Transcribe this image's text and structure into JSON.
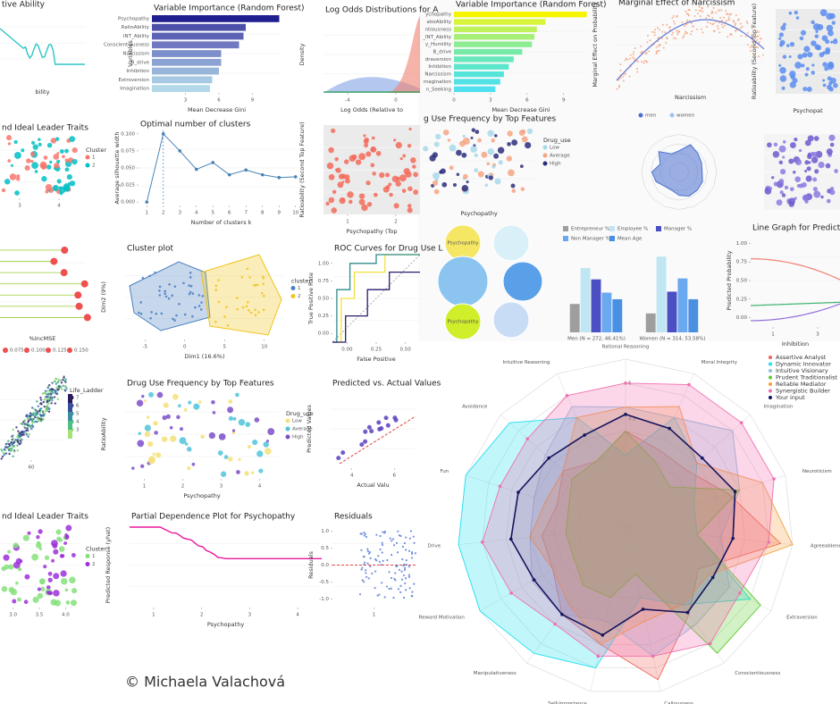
{
  "copyright": "© Michaela Valachová",
  "panels": [
    {
      "kind": "wave",
      "title": "tive Ability",
      "xlabel": "bility",
      "colors": [
        "#2ec4c4"
      ]
    },
    {
      "kind": "dots",
      "title": "nd Ideal Leader Traits",
      "xticks": [
        3,
        4
      ],
      "colors": [
        "#f8766d",
        "#00bfc4"
      ],
      "legend": {
        "title": "Cluster",
        "items": [
          "1",
          "2"
        ],
        "colors": [
          "#f8766d",
          "#00bfc4"
        ]
      }
    },
    {
      "kind": "lollipop",
      "xlabel": "%IncMSE",
      "colors": [
        "#9acd32",
        "#ef4f4f"
      ],
      "legend": {
        "items": [
          "0.075",
          "0.100",
          "0.125",
          "0.150"
        ],
        "colors": [
          "#ef4f4f",
          "#ef4f4f",
          "#ef4f4f",
          "#ef4f4f"
        ],
        "place": "below"
      }
    },
    {
      "kind": "hex",
      "xticks": [
        60
      ],
      "colors": [
        "#3b2a7a",
        "#3e6db0",
        "#3aa58c",
        "#7ed26f"
      ],
      "legend": {
        "title": "Life_Ladder",
        "items": [
          "7",
          "6",
          "5",
          "4",
          "3"
        ],
        "colors": [
          "#2c1b5f",
          "#3b4f9a",
          "#3a8fa3",
          "#4fbf85",
          "#a6e27a"
        ]
      }
    },
    {
      "kind": "dots",
      "title": "nd Ideal Leader Traits",
      "xticks": [
        "3.0",
        "3.5",
        "4.0"
      ],
      "colors": [
        "#85e07a",
        "#9b30d9"
      ],
      "legend": {
        "title": "Cluster",
        "items": [
          "1",
          "2"
        ],
        "colors": [
          "#85e07a",
          "#9b30d9"
        ]
      }
    },
    {
      "kind": "hbar",
      "title": "Variable Importance (Random Forest)",
      "ylabel": "Variables",
      "xlabel": "Mean Decrease Gini",
      "categories": [
        "Psychopathy",
        "RatioAbility",
        "INT_Ability",
        "Conscientiousness",
        "Narcissism",
        "B_drive",
        "Inhibition",
        "Extroversion",
        "Imagination"
      ],
      "values": [
        11.4,
        8.4,
        8.2,
        7.8,
        6.2,
        6.2,
        6.0,
        5.4,
        5.2
      ],
      "colors": [
        "#1f1f8f",
        "#4b4fa8",
        "#5c63b5",
        "#6f78c0",
        "#7d8fca",
        "#8aa3d2",
        "#98b6da",
        "#a6c8e2",
        "#b3d8ea"
      ],
      "xlim": [
        0,
        11.6
      ],
      "xticks": [
        3,
        6,
        9
      ]
    },
    {
      "kind": "silhouette",
      "title": "Optimal number of clusters",
      "ylabel": "Average silhouette width",
      "xlabel": "Number of clusters k",
      "values": [
        0,
        0.1,
        0.075,
        0.048,
        0.058,
        0.04,
        0.047,
        0.04,
        0.036,
        0.037
      ],
      "xlim": [
        0.5,
        10.5
      ],
      "ylim": [
        -0.005,
        0.105
      ],
      "xticks": [
        1,
        2,
        3,
        4,
        5,
        6,
        7,
        8,
        9,
        10
      ],
      "yticks": [
        {
          "value": 0,
          "label": "0.000"
        },
        0.025,
        {
          "value": 0.05,
          "label": "0.050"
        },
        0.075,
        {
          "value": 0.1,
          "label": "0.100"
        }
      ],
      "colors": [
        "#4682b4"
      ]
    },
    {
      "kind": "hull",
      "title": "Cluster plot",
      "ylabel": "Dim2 (9%)",
      "xlabel": "Dim1 (16.6%)",
      "xticks": [
        -5,
        0,
        5,
        10
      ],
      "colors": [
        "#4a7fc1",
        "#f0c419"
      ],
      "legend": {
        "title": "cluster",
        "items": [
          "1",
          "2"
        ],
        "colors": [
          "#4a7fc1",
          "#f0c419"
        ]
      }
    },
    {
      "kind": "dots",
      "title": "Drug Use Frequency by Top Features",
      "ylabel": "RatioAbility",
      "xlabel": "Psychopathy",
      "xticks": [
        1,
        2,
        3,
        4
      ],
      "colors": [
        "#f5e07a",
        "#4fc3d9",
        "#7b4fc9"
      ],
      "legend": {
        "title": "Drug_use",
        "items": [
          "Low",
          "Average",
          "High"
        ],
        "colors": [
          "#f5e07a",
          "#4fc3d9",
          "#7b4fc9"
        ]
      }
    },
    {
      "kind": "pdp",
      "title": "Partial Dependence Plot for Psychopathy",
      "ylabel": "Predicted Response (yhat)",
      "xlabel": "Psychopathy",
      "xticks": [
        1,
        2,
        3,
        4
      ],
      "colors": [
        "#e8179b"
      ]
    },
    {
      "kind": "density",
      "title": "Log Odds Distributions for A",
      "ylabel": "Density",
      "xlabel": "Log Odds (Relative to",
      "xticks": [
        -4,
        0
      ],
      "colors": [
        "#6a8fe0",
        "#f08070",
        "#2e9e4e"
      ]
    },
    {
      "kind": "dots",
      "ylabel": "Ratioability (Second Top Feature)",
      "xlabel": "Psychopathy (Top",
      "xticks": [
        1,
        2
      ],
      "colors": [
        "#f26b5b"
      ],
      "bg": "#ebebeb"
    },
    {
      "kind": "roc",
      "title": "ROC Curves for Drug Use L",
      "ylabel": "True Positive Rate",
      "xlabel": "False Positive",
      "xticks": [
        "0.00",
        "0.25",
        "0.50"
      ],
      "yticks": [
        "0.00",
        "0.25",
        "0.50",
        "0.75",
        "1.00"
      ],
      "colors": [
        "#f0e040",
        "#2e8b8b",
        "#2b1d6e"
      ]
    },
    {
      "kind": "pred",
      "title": "Predicted vs. Actual Values",
      "ylabel": "Predicted Values",
      "xlabel": "Actual Valu",
      "xticks": [
        4,
        6
      ],
      "colors": [
        "#5a3fc0",
        "#e0403a"
      ]
    },
    {
      "kind": "resid",
      "title": "Residuals",
      "ylabel": "Residuals",
      "xticks": [
        1
      ],
      "yticks": [
        "-1.0",
        "-0.5",
        "0.0",
        "0.5",
        "1.0"
      ],
      "colors": [
        "#5b7fd6",
        "#e0403a"
      ]
    },
    {
      "kind": "hbar",
      "title": "Variable Importance (Random Forest)",
      "xlabel": "Mean Decrease Gini",
      "categories": [
        "ychopathy",
        "atioAbility",
        "ntiousness",
        "_INT_Ability",
        "y_Humility",
        "B_drive",
        "draversion",
        "Inhibition",
        "Narcissism",
        "magination",
        "n_Seeking"
      ],
      "values": [
        10.9,
        7.5,
        6.8,
        6.6,
        6.4,
        5.6,
        4.9,
        4.5,
        4.1,
        3.8,
        3.4
      ],
      "colors": [
        "#f5f500",
        "#d8f53a",
        "#bff25a",
        "#a6ef78",
        "#8eec92",
        "#78eaa8",
        "#66e8bc",
        "#5ce6cc",
        "#55e4da",
        "#52e2e6",
        "#50e0f0"
      ],
      "xlim": [
        0,
        11
      ],
      "xticks": [
        0,
        3,
        6,
        9
      ]
    },
    {
      "kind": "curve",
      "title": "Marginal Effect of Narcissism",
      "ylabel": "Marginal Effect on Probability",
      "xlabel": "Narcissism",
      "colors": [
        "#f4a582",
        "#6a7fd6"
      ]
    },
    {
      "kind": "dots",
      "ylabel": "Ratioability (Second Top Feature)",
      "xlabel": "Psychopat",
      "colors": [
        "#5b8def"
      ],
      "bg": "#ebebeb"
    },
    {
      "kind": "dots",
      "title": "g Use Frequency by Top Features",
      "xlabel": "Psychopathy",
      "colors": [
        "#a8d8ea",
        "#f4a582",
        "#2b2d7a"
      ],
      "legend": {
        "title": "Drug_use",
        "items": [
          "Low",
          "Average",
          "High"
        ],
        "colors": [
          "#a8d8ea",
          "#f4a582",
          "#2b2d7a"
        ]
      }
    },
    {
      "kind": "radarsmall",
      "colors": [
        "#4a6fd1"
      ],
      "legend": {
        "items": [
          "men",
          "women"
        ],
        "colors": [
          "#4a6fd1",
          "#9ec3f0"
        ],
        "place": "top"
      }
    },
    {
      "kind": "dots",
      "colors": [
        "#6a5acd",
        "#8a7ae0"
      ],
      "bg": "#f4f4f4"
    },
    {
      "kind": "venn",
      "labels": [
        "Psychopathy",
        "Psychopathy"
      ],
      "colors": [
        "#f5e663",
        "#d9f0f8",
        "#8cc4f0",
        "#5aa0e8",
        "#d0ee2a",
        "#c8dcf5"
      ]
    },
    {
      "kind": "groupbars",
      "groups": [
        "Men (N = 272, 46.41%)",
        "Women (N = 314, 53.58%)"
      ],
      "ylim": [
        0,
        85
      ],
      "series": [
        {
          "name": "Entrepreneur %",
          "color": "#9e9e9e",
          "values": [
            30,
            20
          ]
        },
        {
          "name": "Employee %",
          "color": "#bfe6f2",
          "values": [
            68,
            80
          ]
        },
        {
          "name": "Manager %",
          "color": "#4a4fc4",
          "values": [
            56,
            43
          ]
        },
        {
          "name": "Non Manager %",
          "color": "#6aa8f0",
          "values": [
            42,
            57
          ]
        },
        {
          "name": "Mean Age",
          "color": "#4a90e2",
          "values": [
            35,
            35
          ]
        }
      ]
    },
    {
      "kind": "pp",
      "title": "Line Graph for Predicted P",
      "ylabel": "Predicted Probability",
      "xlabel": "Inhibition",
      "xticks": [
        1,
        3
      ],
      "yticks": [
        "0.00",
        "0.25",
        "0.50",
        "0.75",
        "1.00"
      ],
      "colors": [
        "#f08070",
        "#3cb371",
        "#9370db"
      ]
    }
  ],
  "radar": {
    "axes": [
      "Rational Reasoning",
      "Moral Integrity",
      "Imagination",
      "Neuroticism",
      "Agreeableness",
      "Extraversion",
      "Conscientiousness",
      "Callousness",
      "Self-Importance",
      "Manipulativeness",
      "Reward Motivation",
      "Drive",
      "Fun",
      "Avoidance",
      "Intuitive Reasoning"
    ],
    "rlim": [
      0,
      7
    ],
    "rticks": [
      4.5,
      6
    ],
    "series": [
      {
        "name": "Assertive Analyst",
        "color": "#f0605a",
        "values": [
          4,
          3.5,
          3.5,
          4.5,
          6.5,
          3.5,
          4.5,
          6.5,
          5,
          4.5,
          3.5,
          3.5,
          3,
          3.5,
          3
        ]
      },
      {
        "name": "Dynamic Innovator",
        "color": "#22e0f0",
        "values": [
          3,
          5,
          4,
          3,
          3,
          6,
          4,
          3,
          6,
          6.5,
          7,
          7,
          7,
          6.5,
          5
        ]
      },
      {
        "name": "Intuitive Visionary",
        "color": "#8fbfe0",
        "values": [
          5,
          5,
          6,
          5,
          4,
          5,
          5,
          5.5,
          4,
          4.5,
          4.5,
          4,
          4,
          4.5,
          5.5
        ]
      },
      {
        "name": "Prudent Traditionalist",
        "color": "#5ccc30",
        "values": [
          4,
          3,
          2.5,
          5,
          3,
          6.5,
          6.5,
          2,
          3,
          3,
          2.5,
          2.5,
          2.5,
          3,
          3
        ]
      },
      {
        "name": "Reliable Mediator",
        "color": "#f5a040",
        "values": [
          5,
          5.5,
          4,
          6,
          7,
          4,
          4,
          4,
          5,
          4,
          3.5,
          4,
          3.5,
          3.5,
          5
        ]
      },
      {
        "name": "Synergistic Builder",
        "color": "#f070b0",
        "values": [
          6,
          6.5,
          6.5,
          6.5,
          6,
          5.5,
          6,
          5.5,
          5.5,
          5,
          5.5,
          6,
          5.5,
          5.5,
          6
        ]
      },
      {
        "name": "Your input",
        "color": "#15155e",
        "values": [
          4.7,
          4.5,
          4.3,
          4.8,
          4.5,
          4.2,
          4.4,
          3.5,
          4.6,
          4.5,
          4.4,
          4.8,
          4.7,
          4.3,
          4.2
        ]
      }
    ]
  }
}
